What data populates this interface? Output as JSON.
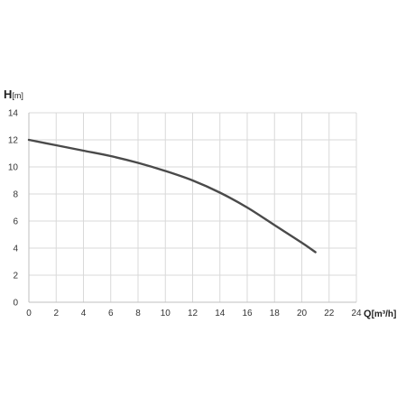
{
  "chart_data": {
    "type": "line",
    "title": "",
    "xlabel_main": "Q",
    "xlabel_unit": "[m³/h]",
    "ylabel_main": "H",
    "ylabel_unit": "[m]",
    "xlim": [
      0,
      24
    ],
    "ylim": [
      0,
      14
    ],
    "x_ticks": [
      0,
      2,
      4,
      6,
      8,
      10,
      12,
      14,
      16,
      18,
      20,
      22,
      24
    ],
    "y_ticks": [
      0,
      2,
      4,
      6,
      8,
      10,
      12,
      14
    ],
    "x_tick_labels": [
      "0",
      "2",
      "4",
      "6",
      "8",
      "10",
      "12",
      "14",
      "16",
      "18",
      "20",
      "22",
      "24"
    ],
    "y_tick_labels": [
      "0",
      "2",
      "4",
      "6",
      "8",
      "10",
      "12",
      "14"
    ],
    "grid": true,
    "legend": "none",
    "colors": {
      "line": "#4a4a4a",
      "grid": "#d9d9d9",
      "axis": "#bfbfbf"
    },
    "series": [
      {
        "x": [
          0,
          2,
          4,
          6,
          8,
          10,
          12,
          14,
          16,
          18,
          20,
          21
        ],
        "y": [
          12.0,
          11.6,
          11.2,
          10.8,
          10.3,
          9.7,
          9.0,
          8.1,
          7.0,
          5.7,
          4.4,
          3.7
        ]
      }
    ]
  }
}
